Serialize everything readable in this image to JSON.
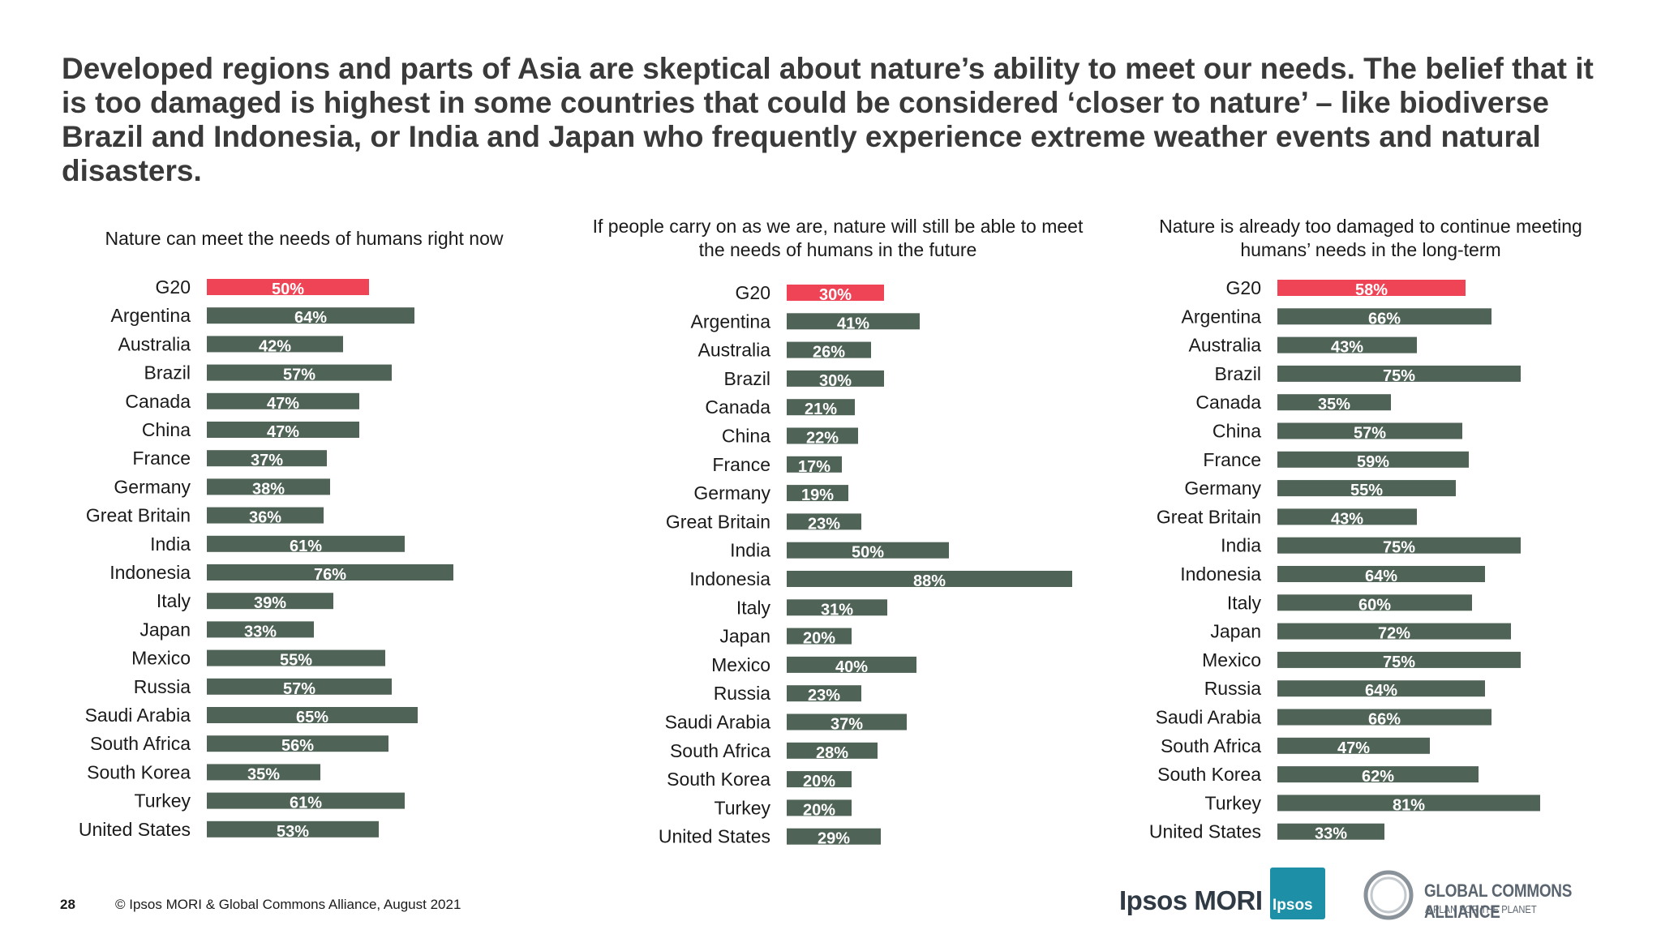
{
  "headline": "Developed regions and parts of Asia are skeptical about nature’s ability to meet our needs. The belief that it is too damaged is highest in some countries that could be considered ‘closer to nature’ – like biodiverse Brazil and Indonesia, or India and Japan who frequently experience extreme weather events and natural disasters.",
  "colors": {
    "highlight": "#ee4456",
    "bar": "#4f6357",
    "label": "#ffffff"
  },
  "chart_data": [
    {
      "type": "bar",
      "title": [
        "Nature can meet the needs of humans right now"
      ],
      "categories": [
        "G20",
        "Argentina",
        "Australia",
        "Brazil",
        "Canada",
        "China",
        "France",
        "Germany",
        "Great Britain",
        "India",
        "Indonesia",
        "Italy",
        "Japan",
        "Mexico",
        "Russia",
        "Saudi Arabia",
        "South Africa",
        "South Korea",
        "Turkey",
        "United States"
      ],
      "values": [
        50,
        64,
        42,
        57,
        47,
        47,
        37,
        38,
        36,
        61,
        76,
        39,
        33,
        55,
        57,
        65,
        56,
        35,
        61,
        53
      ],
      "highlight_index": 0,
      "orientation": "horizontal",
      "unit": "%"
    },
    {
      "type": "bar",
      "title": [
        "If people carry on as we are, nature will still be able to meet",
        "the needs of humans in the future"
      ],
      "categories": [
        "G20",
        "Argentina",
        "Australia",
        "Brazil",
        "Canada",
        "China",
        "France",
        "Germany",
        "Great Britain",
        "India",
        "Indonesia",
        "Italy",
        "Japan",
        "Mexico",
        "Russia",
        "Saudi Arabia",
        "South Africa",
        "South Korea",
        "Turkey",
        "United States"
      ],
      "values": [
        30,
        41,
        26,
        30,
        21,
        22,
        17,
        19,
        23,
        50,
        88,
        31,
        20,
        40,
        23,
        37,
        28,
        20,
        20,
        29
      ],
      "highlight_index": 0,
      "orientation": "horizontal",
      "unit": "%"
    },
    {
      "type": "bar",
      "title": [
        "Nature is already too damaged to continue meeting",
        "humans’ needs in the long-term"
      ],
      "categories": [
        "G20",
        "Argentina",
        "Australia",
        "Brazil",
        "Canada",
        "China",
        "France",
        "Germany",
        "Great Britain",
        "India",
        "Indonesia",
        "Italy",
        "Japan",
        "Mexico",
        "Russia",
        "Saudi Arabia",
        "South Africa",
        "South Korea",
        "Turkey",
        "United States"
      ],
      "values": [
        58,
        66,
        43,
        75,
        35,
        57,
        59,
        55,
        43,
        75,
        64,
        60,
        72,
        75,
        64,
        66,
        47,
        62,
        81,
        33
      ],
      "highlight_index": 0,
      "orientation": "horizontal",
      "unit": "%"
    }
  ],
  "footer": {
    "page_number": "28",
    "copyright": "© Ipsos MORI & Global Commons Alliance, August 2021"
  },
  "logos": {
    "ipsos_mori": "Ipsos MORI",
    "ipsos_badge": "Ipsos",
    "gca_name": "GLOBAL COMMONS ALLIANCE",
    "gca_tagline": "A PLAN FOR THE PLANET"
  }
}
